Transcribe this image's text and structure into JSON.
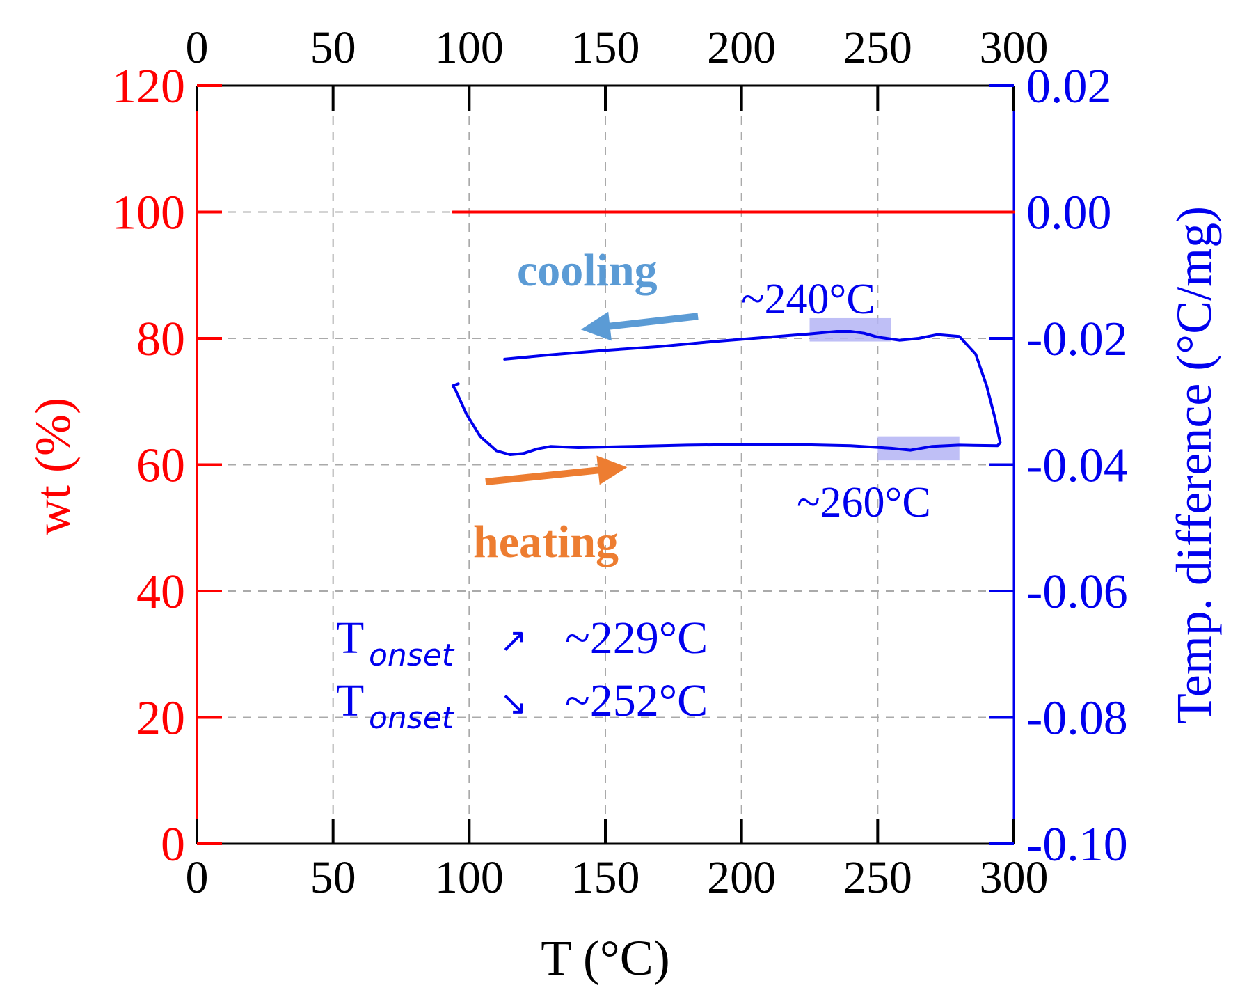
{
  "colors": {
    "left_axis": "#ff0000",
    "right_axis": "#0000ee",
    "cooling": "#5b9bd5",
    "heating": "#ed7d31",
    "highlight": "#b4b4f5",
    "grid": "#aaaaaa"
  },
  "chart_data": {
    "type": "line",
    "xlabel": "T (°C)",
    "ylabel_left": "wt (%)",
    "ylabel_right": "Temp. difference (°C/mg)",
    "xlim": [
      0,
      300
    ],
    "ylim_left": [
      0,
      120
    ],
    "ylim_right": [
      -0.1,
      0.02
    ],
    "x_ticks": [
      "0",
      "50",
      "100",
      "150",
      "200",
      "250",
      "300"
    ],
    "y_left_ticks": [
      "0",
      "20",
      "40",
      "60",
      "80",
      "100",
      "120"
    ],
    "y_right_ticks": [
      "-0.10",
      "-0.08",
      "-0.06",
      "-0.04",
      "-0.02",
      "0.00",
      "0.02"
    ],
    "grid": true,
    "series": [
      {
        "axis": "left",
        "points": [
          [
            94,
            100
          ],
          [
            300,
            100
          ]
        ]
      },
      {
        "axis": "right",
        "points": [
          [
            113,
            -0.0233
          ],
          [
            130,
            -0.0226
          ],
          [
            150,
            -0.0219
          ],
          [
            170,
            -0.0213
          ],
          [
            190,
            -0.0205
          ],
          [
            210,
            -0.0198
          ],
          [
            225,
            -0.0193
          ],
          [
            235,
            -0.0189
          ],
          [
            240,
            -0.0189
          ],
          [
            245,
            -0.0192
          ],
          [
            250,
            -0.0198
          ],
          [
            258,
            -0.0203
          ],
          [
            265,
            -0.02
          ],
          [
            272,
            -0.0194
          ],
          [
            280,
            -0.0197
          ],
          [
            286,
            -0.0225
          ],
          [
            290,
            -0.0275
          ],
          [
            293,
            -0.0325
          ],
          [
            295,
            -0.0365
          ],
          [
            294,
            -0.037
          ],
          [
            280,
            -0.0369
          ],
          [
            270,
            -0.0371
          ],
          [
            262,
            -0.0377
          ],
          [
            255,
            -0.0374
          ],
          [
            240,
            -0.037
          ],
          [
            220,
            -0.0368
          ],
          [
            200,
            -0.0368
          ],
          [
            180,
            -0.0369
          ],
          [
            160,
            -0.0371
          ],
          [
            140,
            -0.0373
          ],
          [
            130,
            -0.0371
          ],
          [
            125,
            -0.0375
          ],
          [
            120,
            -0.0382
          ],
          [
            115,
            -0.0384
          ],
          [
            110,
            -0.0378
          ],
          [
            104,
            -0.0355
          ],
          [
            99,
            -0.032
          ],
          [
            95,
            -0.0282
          ],
          [
            94,
            -0.0275
          ],
          [
            96,
            -0.0272
          ]
        ]
      }
    ],
    "annotations": {
      "cooling_label": "cooling",
      "heating_label": "heating",
      "peak_high_label": "~240°C",
      "peak_low_label": "~260°C",
      "onset_heating": {
        "symbol": "T",
        "subscript": "onset",
        "arrow": "↗",
        "value": "~229°C"
      },
      "onset_cooling": {
        "symbol": "T",
        "subscript": "onset",
        "arrow": "↘",
        "value": "~252°C"
      },
      "highlight_high": {
        "x": [
          225,
          255
        ],
        "y": [
          -0.0205,
          -0.0168
        ]
      },
      "highlight_low": {
        "x": [
          250,
          280
        ],
        "y": [
          -0.0393,
          -0.0355
        ]
      },
      "cooling_arrow": {
        "from": [
          184,
          -0.0165
        ],
        "to": [
          141,
          -0.0186
        ]
      },
      "heating_arrow": {
        "from": [
          106,
          -0.0427
        ],
        "to": [
          158,
          -0.0404
        ]
      }
    }
  }
}
